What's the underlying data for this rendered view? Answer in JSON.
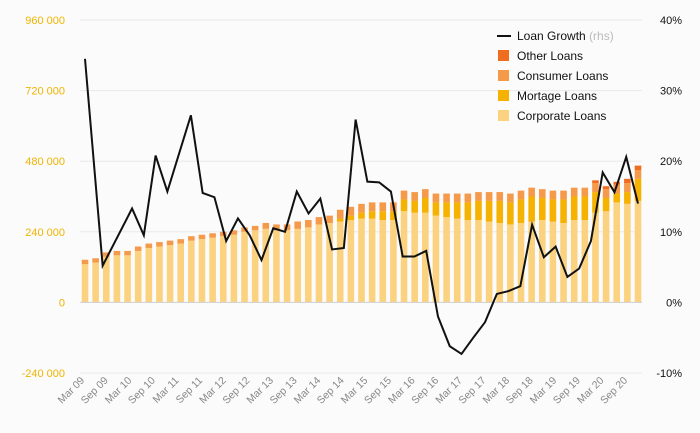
{
  "chart_data": {
    "type": "bar",
    "stacked": true,
    "title": "",
    "xlabel": "",
    "ylabel": "",
    "ylim": [
      -240000,
      960000
    ],
    "yticks": [
      "-240 000",
      "0",
      "240 000",
      "480 000",
      "720 000",
      "960 000"
    ],
    "ytick_values": [
      -240000,
      0,
      240000,
      480000,
      720000,
      960000
    ],
    "y2lim": [
      -10,
      40
    ],
    "y2ticks": [
      "-10%",
      "0%",
      "10%",
      "20%",
      "30%",
      "40%"
    ],
    "y2tick_values": [
      -10,
      0,
      10,
      20,
      30,
      40
    ],
    "x_labels": [
      "Mar 09",
      "Sep 09",
      "Mar 10",
      "Sep 10",
      "Mar 11",
      "Sep 11",
      "Mar 12",
      "Sep 12",
      "Mar 13",
      "Sep 13",
      "Mar 14",
      "Sep 14",
      "Mar 15",
      "Sep 15",
      "Mar 16",
      "Sep 16",
      "Mar 17",
      "Sep 17",
      "Mar 18",
      "Sep 18",
      "Mar 19",
      "Sep 19",
      "Mar 20",
      "Sep 20"
    ],
    "legend": {
      "position": "top-right",
      "line_label": "Loan Growth",
      "line_suffix": "(rhs)",
      "entries": [
        "Other Loans",
        "Consumer Loans",
        "Mortage Loans",
        "Corporate Loans"
      ]
    },
    "colors": {
      "corporate": "#fbd27f",
      "mortgage": "#f5b200",
      "consumer": "#f59a4a",
      "other": "#f06d1f",
      "line": "#111111",
      "axis_left": "#f0b400"
    },
    "series": [
      {
        "name": "Corporate Loans",
        "values": [
          130000,
          135000,
          155000,
          160000,
          160000,
          175000,
          185000,
          190000,
          195000,
          200000,
          210000,
          215000,
          220000,
          225000,
          230000,
          240000,
          245000,
          250000,
          245000,
          245000,
          250000,
          255000,
          265000,
          270000,
          275000,
          280000,
          285000,
          285000,
          280000,
          280000,
          310000,
          305000,
          305000,
          295000,
          290000,
          285000,
          280000,
          280000,
          275000,
          270000,
          265000,
          270000,
          275000,
          280000,
          275000,
          270000,
          280000,
          280000,
          305000,
          310000,
          340000,
          335000,
          345000
        ]
      },
      {
        "name": "Mortage Loans",
        "values": [
          0,
          0,
          0,
          0,
          0,
          0,
          0,
          0,
          0,
          0,
          0,
          0,
          0,
          0,
          0,
          0,
          0,
          0,
          0,
          0,
          0,
          0,
          0,
          0,
          10000,
          15000,
          20000,
          25000,
          30000,
          30000,
          40000,
          40000,
          50000,
          45000,
          50000,
          55000,
          60000,
          65000,
          70000,
          75000,
          75000,
          80000,
          85000,
          75000,
          75000,
          80000,
          80000,
          80000,
          70000,
          45000,
          30000,
          40000,
          75000
        ]
      },
      {
        "name": "Consumer Loans",
        "values": [
          15000,
          15000,
          15000,
          15000,
          15000,
          15000,
          15000,
          15000,
          15000,
          15000,
          15000,
          15000,
          15000,
          15000,
          15000,
          15000,
          15000,
          20000,
          20000,
          20000,
          25000,
          25000,
          25000,
          25000,
          30000,
          30000,
          30000,
          30000,
          30000,
          30000,
          30000,
          30000,
          30000,
          30000,
          30000,
          30000,
          30000,
          30000,
          30000,
          30000,
          30000,
          30000,
          30000,
          30000,
          30000,
          30000,
          30000,
          30000,
          30000,
          30000,
          30000,
          30000,
          30000
        ]
      },
      {
        "name": "Other Loans",
        "values": [
          0,
          0,
          0,
          0,
          0,
          0,
          0,
          0,
          0,
          0,
          0,
          0,
          0,
          0,
          0,
          0,
          0,
          0,
          0,
          0,
          0,
          0,
          0,
          0,
          0,
          0,
          0,
          0,
          0,
          0,
          0,
          0,
          0,
          0,
          0,
          0,
          0,
          0,
          0,
          0,
          0,
          0,
          0,
          0,
          0,
          0,
          0,
          0,
          10000,
          10000,
          10000,
          15000,
          15000
        ]
      }
    ],
    "line_series": {
      "name": "Loan Growth",
      "axis": "right",
      "points": [
        [
          0,
          34.5
        ],
        [
          3,
          5.2
        ],
        [
          8,
          13.3
        ],
        [
          10,
          9.5
        ],
        [
          12,
          20.8
        ],
        [
          14,
          15.7
        ],
        [
          18,
          26.5
        ],
        [
          20,
          15.5
        ],
        [
          22,
          14.9
        ],
        [
          24,
          8.7
        ],
        [
          26,
          11.9
        ],
        [
          28,
          9.5
        ],
        [
          30,
          6
        ],
        [
          32,
          10.5
        ],
        [
          34,
          10
        ],
        [
          36,
          15.7
        ],
        [
          38,
          12.6
        ],
        [
          40,
          14.7
        ],
        [
          42,
          7.5
        ],
        [
          44,
          7.7
        ],
        [
          46,
          25.9
        ],
        [
          48,
          17.1
        ],
        [
          50,
          17
        ],
        [
          52,
          15.7
        ],
        [
          54,
          6.5
        ],
        [
          56,
          6.5
        ],
        [
          58,
          7.3
        ],
        [
          60,
          -2
        ],
        [
          62,
          -6.2
        ],
        [
          64,
          -7.3
        ],
        [
          66,
          -5
        ],
        [
          68,
          -2.8
        ],
        [
          70,
          1.2
        ],
        [
          72,
          1.6
        ],
        [
          74,
          2.3
        ],
        [
          76,
          11
        ],
        [
          78,
          6.4
        ],
        [
          80,
          7.9
        ],
        [
          82,
          3.6
        ],
        [
          84,
          4.8
        ],
        [
          86,
          8.7
        ],
        [
          88,
          18.4
        ],
        [
          90,
          15.6
        ],
        [
          92,
          20.6
        ],
        [
          94,
          14
        ]
      ]
    }
  }
}
